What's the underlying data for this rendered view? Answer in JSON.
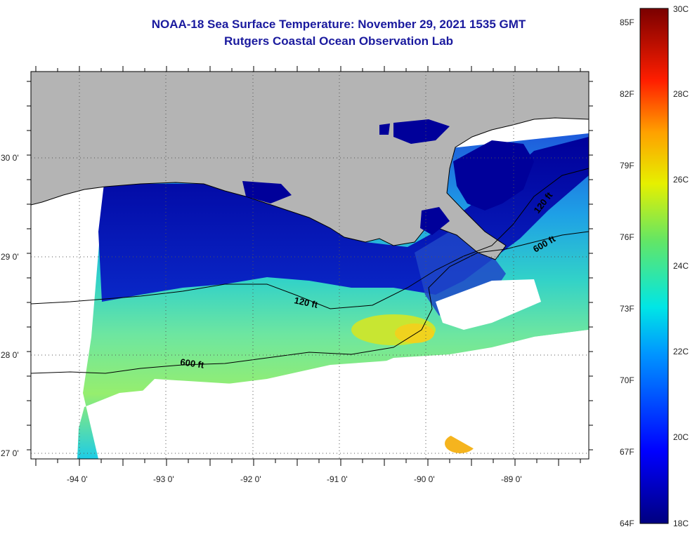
{
  "map": {
    "title": "NOAA-18 Sea Surface Temperature:  November 29, 2021 1535 GMT",
    "subtitle": "Rutgers Coastal Ocean Observation Lab",
    "lon_labels": [
      "-94 0'",
      "-93 0'",
      "-92 0'",
      "-91 0'",
      "-90 0'",
      "-89 0'"
    ],
    "lat_labels": [
      "30 0'",
      "29 0'",
      "28 0'",
      "27 0'"
    ],
    "contour_labels": [
      "120 ft",
      "600 ft",
      "120 ft",
      "600 ft"
    ],
    "colors": {
      "land": "#b4b4b4",
      "cold": "#0a1496",
      "warm": "#f2d21e",
      "no_data": "#ffffff"
    }
  },
  "colorbar": {
    "fahrenheit_labels": [
      "85F",
      "82F",
      "79F",
      "76F",
      "73F",
      "70F",
      "67F",
      "64F"
    ],
    "celsius_labels": [
      "30C",
      "28C",
      "26C",
      "24C",
      "22C",
      "20C",
      "18C"
    ]
  }
}
